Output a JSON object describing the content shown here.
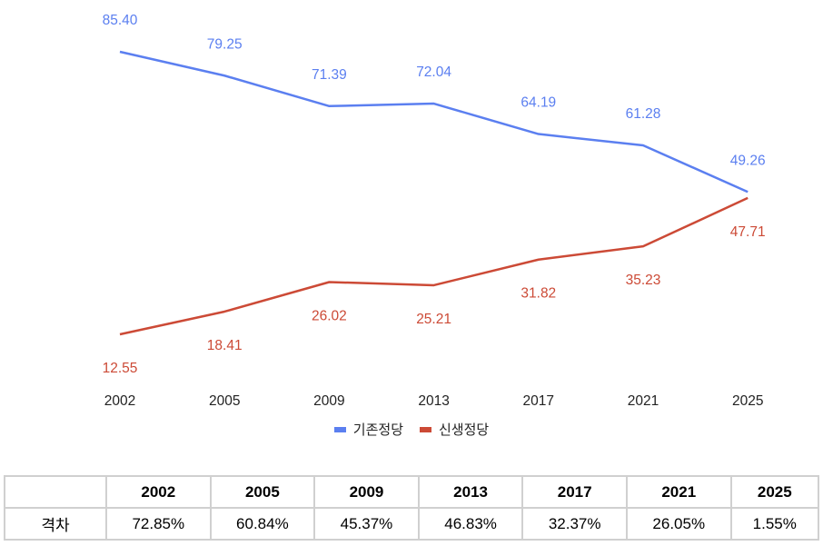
{
  "chart_data": {
    "type": "line",
    "categories": [
      "2002",
      "2005",
      "2009",
      "2013",
      "2017",
      "2021",
      "2025"
    ],
    "series": [
      {
        "name": "기존정당",
        "color": "#5b7ff0",
        "values": [
          85.4,
          79.25,
          71.39,
          72.04,
          64.19,
          61.28,
          49.26
        ],
        "labels": [
          "85.40",
          "79.25",
          "71.39",
          "72.04",
          "64.19",
          "61.28",
          "49.26"
        ]
      },
      {
        "name": "신생정당",
        "color": "#cc4a36",
        "values": [
          12.55,
          18.41,
          26.02,
          25.21,
          31.82,
          35.23,
          47.71
        ],
        "labels": [
          "12.55",
          "18.41",
          "26.02",
          "25.21",
          "31.82",
          "35.23",
          "47.71"
        ]
      }
    ],
    "title": "",
    "xlabel": "",
    "ylabel": "",
    "grid": false,
    "legend": "bottom"
  },
  "table": {
    "header": [
      "",
      "2002",
      "2005",
      "2009",
      "2013",
      "2017",
      "2021",
      "2025"
    ],
    "row_label": "격차",
    "values": [
      "72.85%",
      "60.84%",
      "45.37%",
      "46.83%",
      "32.37%",
      "26.05%",
      "1.55%"
    ]
  }
}
